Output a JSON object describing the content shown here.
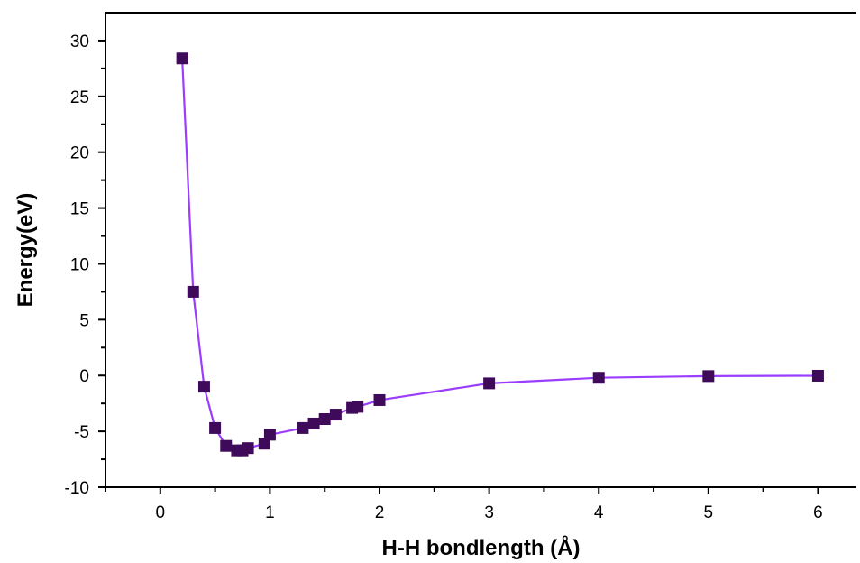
{
  "chart_data": {
    "type": "line",
    "title": "",
    "xlabel": "H-H bondlength (Å)",
    "ylabel": "Energy(eV)",
    "xlim": [
      -0.5,
      6.35
    ],
    "ylim": [
      -10,
      32.5
    ],
    "x_ticks": [
      0,
      1,
      2,
      3,
      4,
      5,
      6
    ],
    "y_ticks": [
      -10,
      -5,
      0,
      5,
      10,
      15,
      20,
      25,
      30
    ],
    "grid": false,
    "legend": "none",
    "series": [
      {
        "color": "#9b3dff",
        "marker_color": "#3f0a5a",
        "marker": "square",
        "x": [
          0.2,
          0.3,
          0.4,
          0.5,
          0.6,
          0.7,
          0.75,
          0.8,
          0.95,
          1.0,
          1.3,
          1.4,
          1.5,
          1.6,
          1.75,
          1.8,
          2.0,
          3.0,
          4.0,
          5.0,
          6.0
        ],
        "y": [
          28.4,
          7.5,
          -1.0,
          -4.7,
          -6.3,
          -6.7,
          -6.7,
          -6.5,
          -6.1,
          -5.3,
          -4.7,
          -4.3,
          -3.9,
          -3.5,
          -2.9,
          -2.8,
          -2.2,
          -0.7,
          -0.2,
          -0.05,
          -0.02
        ]
      }
    ]
  }
}
